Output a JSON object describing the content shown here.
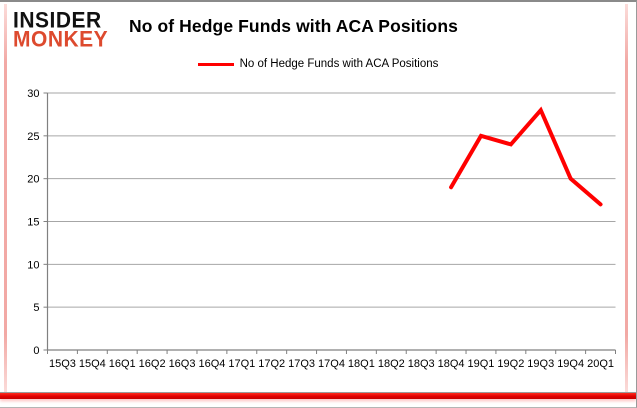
{
  "logo": {
    "line1": "INSIDER",
    "line2": "MONKEY",
    "line1_color": "#111111",
    "line2_color": "#dd4a2e"
  },
  "header": {
    "title": "No of Hedge Funds with ACA Positions"
  },
  "legend": {
    "label": "No of Hedge Funds with ACA Positions",
    "line_color": "#ff0000"
  },
  "colors": {
    "series_line": "#ff0000",
    "gridline": "#a6a6a6",
    "axis": "#808080",
    "bottom_accent": "#e00000",
    "side_accent": "#f2a9a5",
    "frame": "#8a8a8a"
  },
  "chart_data": {
    "type": "line",
    "title": "No of Hedge Funds with ACA Positions",
    "categories": [
      "15Q3",
      "15Q4",
      "16Q1",
      "16Q2",
      "16Q3",
      "16Q4",
      "17Q1",
      "17Q2",
      "17Q3",
      "17Q4",
      "18Q1",
      "18Q2",
      "18Q3",
      "18Q4",
      "19Q1",
      "19Q2",
      "19Q3",
      "19Q4",
      "20Q1"
    ],
    "series": [
      {
        "name": "No of Hedge Funds with ACA Positions",
        "color": "#ff0000",
        "values": [
          null,
          null,
          null,
          null,
          null,
          null,
          null,
          null,
          null,
          null,
          null,
          null,
          null,
          19,
          25,
          24,
          28,
          20,
          17
        ]
      }
    ],
    "xlabel": "",
    "ylabel": "",
    "ylim": [
      0,
      30
    ],
    "yticks": [
      0,
      5,
      10,
      15,
      20,
      25,
      30
    ],
    "grid": true,
    "legend_position": "top-center"
  }
}
